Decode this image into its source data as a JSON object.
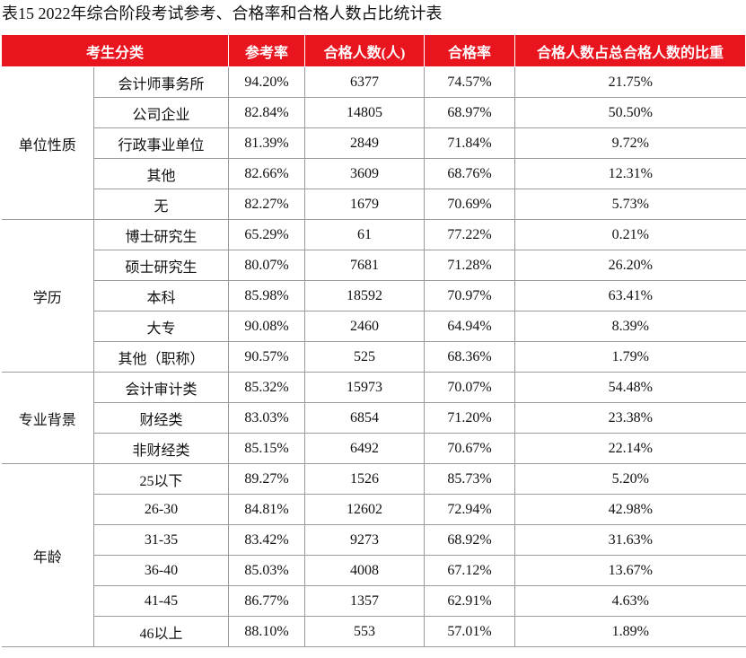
{
  "header": {
    "title": "表15  2022年综合阶段考试参考、合格率和合格人数占比统计表"
  },
  "table": {
    "columns": [
      "考生分类",
      "参考率",
      "合格人数(人)",
      "合格率",
      "合格人数占总合格人数的比重"
    ],
    "groups": [
      {
        "name": "单位性质",
        "rows": [
          [
            "会计师事务所",
            "94.20%",
            "6377",
            "74.57%",
            "21.75%"
          ],
          [
            "公司企业",
            "82.84%",
            "14805",
            "68.97%",
            "50.50%"
          ],
          [
            "行政事业单位",
            "81.39%",
            "2849",
            "71.84%",
            "9.72%"
          ],
          [
            "其他",
            "82.66%",
            "3609",
            "68.76%",
            "12.31%"
          ],
          [
            "无",
            "82.27%",
            "1679",
            "70.69%",
            "5.73%"
          ]
        ]
      },
      {
        "name": "学历",
        "rows": [
          [
            "博士研究生",
            "65.29%",
            "61",
            "77.22%",
            "0.21%"
          ],
          [
            "硕士研究生",
            "80.07%",
            "7681",
            "71.28%",
            "26.20%"
          ],
          [
            "本科",
            "85.98%",
            "18592",
            "70.97%",
            "63.41%"
          ],
          [
            "大专",
            "90.08%",
            "2460",
            "64.94%",
            "8.39%"
          ],
          [
            "其他（职称）",
            "90.57%",
            "525",
            "68.36%",
            "1.79%"
          ]
        ]
      },
      {
        "name": "专业背景",
        "rows": [
          [
            "会计审计类",
            "85.32%",
            "15973",
            "70.07%",
            "54.48%"
          ],
          [
            "财经类",
            "83.03%",
            "6854",
            "71.20%",
            "23.38%"
          ],
          [
            "非财经类",
            "85.15%",
            "6492",
            "70.67%",
            "22.14%"
          ]
        ]
      },
      {
        "name": "年龄",
        "rows": [
          [
            "25以下",
            "89.27%",
            "1526",
            "85.73%",
            "5.20%"
          ],
          [
            "26-30",
            "84.81%",
            "12602",
            "72.94%",
            "42.98%"
          ],
          [
            "31-35",
            "83.42%",
            "9273",
            "68.92%",
            "31.63%"
          ],
          [
            "36-40",
            "85.03%",
            "4008",
            "67.12%",
            "13.67%"
          ],
          [
            "41-45",
            "86.77%",
            "1357",
            "62.91%",
            "4.63%"
          ],
          [
            "46以上",
            "88.10%",
            "553",
            "57.01%",
            "1.89%"
          ]
        ]
      }
    ]
  }
}
